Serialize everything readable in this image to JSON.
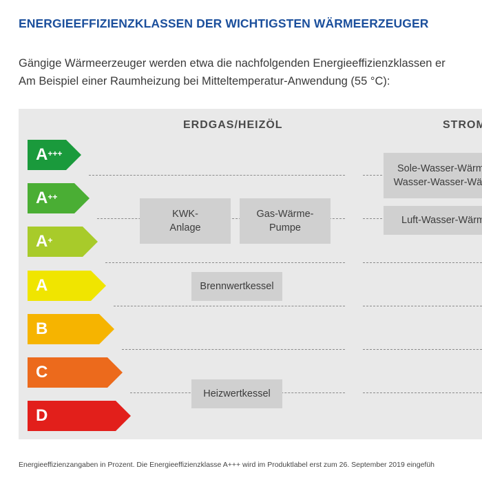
{
  "title": "ENERGIEEFFIZIENZKLASSEN DER WICHTIGSTEN WÄRMEERZEUGER",
  "intro": {
    "line1": "Gängige Wärmeerzeuger werden etwa die nachfolgenden Energieeffizienzklassen er",
    "line2": "Am Beispiel einer Raumheizung bei Mitteltemperatur-Anwendung (55 °C):"
  },
  "columns": {
    "left": "ERDGAS/HEIZÖL",
    "right": "STROM"
  },
  "classes": [
    {
      "base": "A",
      "sup": "+++",
      "color": "#1a9a3c"
    },
    {
      "base": "A",
      "sup": "++",
      "color": "#4aae34"
    },
    {
      "base": "A",
      "sup": "+",
      "color": "#a8cb2a"
    },
    {
      "base": "A",
      "sup": "",
      "color": "#f0e500"
    },
    {
      "base": "B",
      "sup": "",
      "color": "#f6b400"
    },
    {
      "base": "C",
      "sup": "",
      "color": "#ec6a1c"
    },
    {
      "base": "D",
      "sup": "",
      "color": "#e21f1b"
    }
  ],
  "generators": {
    "kwk": {
      "line1": "KWK-",
      "line2": "Anlage"
    },
    "gas_wp": {
      "line1": "Gas-Wärme-",
      "line2": "Pumpe"
    },
    "brennwert": "Brennwertkessel",
    "heizwert": "Heizwertkessel",
    "sole": {
      "line1": "Sole-Wasser-Wärm",
      "line2": "Wasser-Wasser-Wä"
    },
    "luft": "Luft-Wasser-Wärm"
  },
  "footnote": "Energieeffizienzangaben in Prozent. Die Energieeffizienzklasse A+++ wird im Produktlabel erst zum 26. September 2019 eingefüh"
}
